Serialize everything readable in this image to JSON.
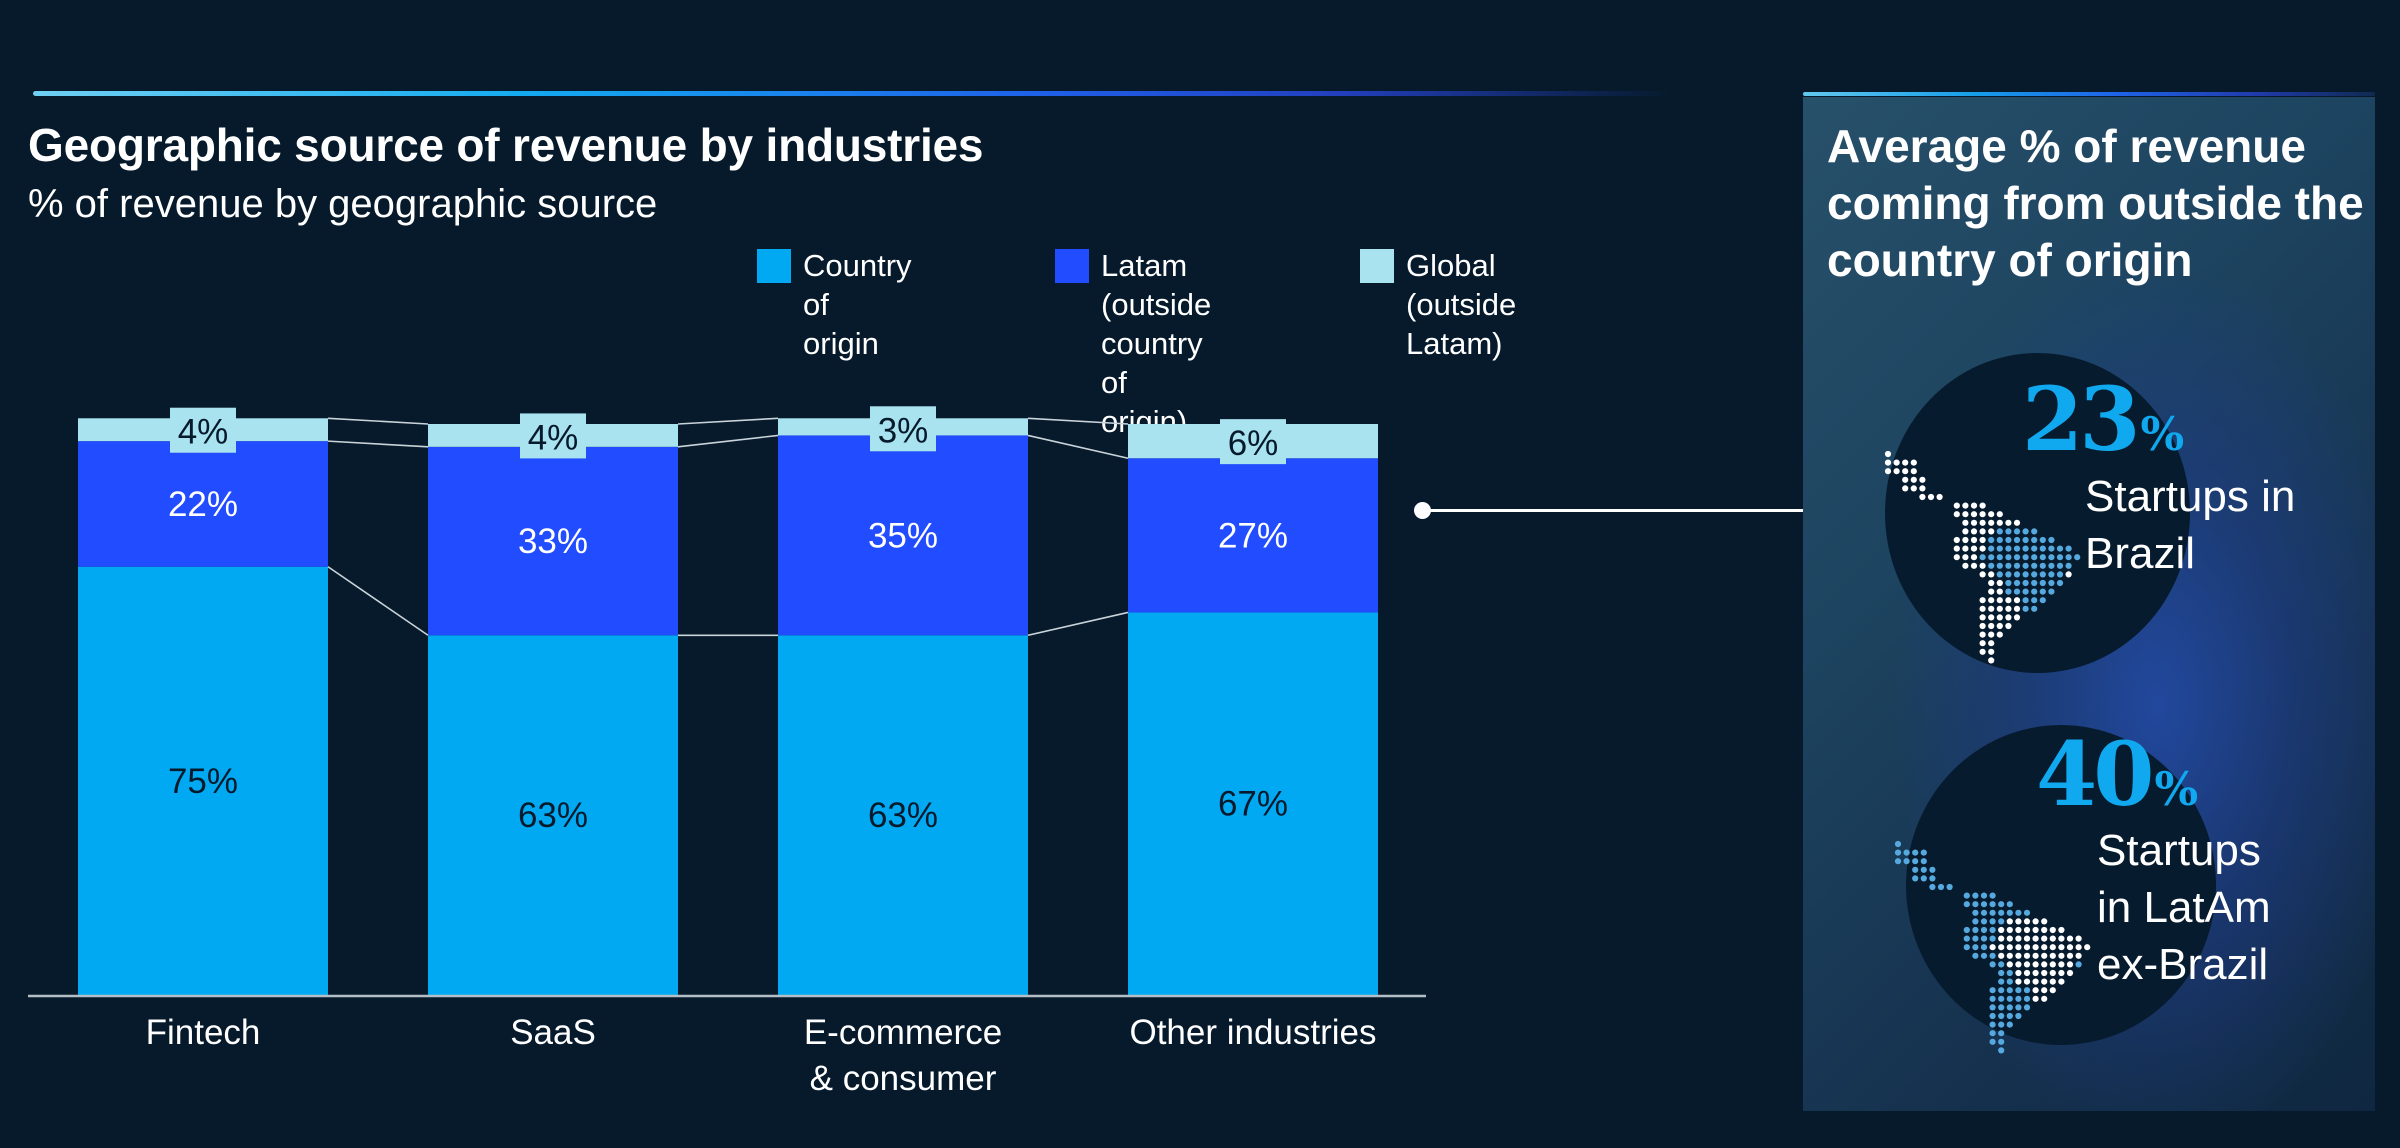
{
  "header": {
    "title": "Geographic source of revenue by industries",
    "subtitle": "% of revenue by geographic source"
  },
  "legend": [
    {
      "label": "Country of origin",
      "color": "#00a9f2"
    },
    {
      "label": "Latam (outside\ncountry of origin)",
      "color": "#224cff"
    },
    {
      "label": "Global\n(outside Latam)",
      "color": "#a8e3ef"
    }
  ],
  "chart_data": {
    "type": "bar",
    "stacked": true,
    "title": "Geographic source of revenue by industries",
    "subtitle": "% of revenue by geographic source",
    "xlabel": "",
    "ylabel": "% of revenue",
    "ylim": [
      0,
      101
    ],
    "grid": false,
    "legend_position": "top-right",
    "categories": [
      "Fintech",
      "SaaS",
      "E-commerce\n& consumer",
      "Other industries"
    ],
    "series": [
      {
        "name": "Country of origin",
        "color": "#00a9f2",
        "label_color": "#061a2b",
        "values": [
          75,
          63,
          63,
          67
        ],
        "labels": [
          "75%",
          "63%",
          "63%",
          "67%"
        ]
      },
      {
        "name": "Latam (outside country of origin)",
        "color": "#224cff",
        "label_color": "#ffffff",
        "values": [
          22,
          33,
          35,
          27
        ],
        "labels": [
          "22%",
          "33%",
          "35%",
          "27%"
        ]
      },
      {
        "name": "Global (outside Latam)",
        "color": "#a8e3ef",
        "label_color": "#061a2b",
        "values": [
          4,
          4,
          3,
          6
        ],
        "labels": [
          "4%",
          "4%",
          "3%",
          "6%"
        ]
      }
    ]
  },
  "panel": {
    "title": "Average % of revenue coming from outside the country of origin",
    "stats": [
      {
        "value": "23",
        "unit": "%",
        "label": "Startups in\nBrazil",
        "highlight": "brazil"
      },
      {
        "value": "40",
        "unit": "%",
        "label": "Startups\nin LatAm\nex-Brazil",
        "highlight": "latam-ex-brazil"
      }
    ]
  },
  "colors": {
    "background": "#061a2b",
    "accent": "#10a8ee",
    "map_dot_white": "#ffffff",
    "map_dot_blue": "#56a9de"
  }
}
